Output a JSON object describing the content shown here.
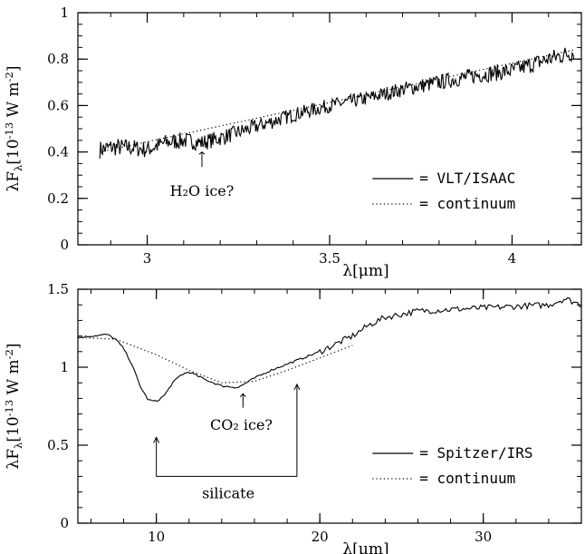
{
  "chart_data": [
    {
      "type": "line",
      "xlabel": "λ[μm]",
      "ylabel": "λF_λ[10^-13 W m^-2]",
      "xlim": [
        2.81,
        4.19
      ],
      "ylim": [
        0,
        1
      ],
      "x_ticks": [
        "3",
        "3.5",
        "4"
      ],
      "y_ticks": [
        "0",
        "0.2",
        "0.4",
        "0.6",
        "0.8",
        "1"
      ],
      "legend_placement": "bottom-right",
      "series": [
        {
          "name": "= VLT/ISAAC",
          "style": "solid",
          "noise": 0.03,
          "x": [
            2.87,
            2.9,
            2.95,
            3.0,
            3.05,
            3.1,
            3.15,
            3.2,
            3.3,
            3.4,
            3.5,
            3.6,
            3.7,
            3.8,
            3.9,
            4.0,
            4.1,
            4.17
          ],
          "y": [
            0.41,
            0.42,
            0.42,
            0.41,
            0.44,
            0.45,
            0.44,
            0.46,
            0.51,
            0.56,
            0.6,
            0.63,
            0.67,
            0.7,
            0.73,
            0.75,
            0.8,
            0.83
          ]
        },
        {
          "name": "= continuum",
          "style": "dotted",
          "x": [
            2.87,
            4.17
          ],
          "y": [
            0.4,
            0.84
          ]
        }
      ],
      "annotations": [
        {
          "text": "H₂O ice?",
          "x": 3.15,
          "y": 0.38
        }
      ]
    },
    {
      "type": "line",
      "xlabel": "λ[μm]",
      "ylabel": "λF_λ[10^-13 W m^-2]",
      "xlim": [
        5.2,
        36
      ],
      "ylim": [
        0,
        1.5
      ],
      "x_ticks": [
        "10",
        "20",
        "30"
      ],
      "y_ticks": [
        "0",
        "0.5",
        "1",
        "1.5"
      ],
      "legend_placement": "bottom-right",
      "series": [
        {
          "name": "= Spitzer/IRS",
          "style": "solid",
          "x": [
            5.2,
            6,
            7,
            7.5,
            8,
            8.5,
            9,
            9.5,
            10,
            10.5,
            11,
            11.5,
            12,
            13,
            14,
            15,
            16,
            17,
            18,
            19,
            20,
            21,
            22,
            23,
            24,
            25,
            26,
            28,
            30,
            32,
            34,
            35,
            36
          ],
          "y": [
            1.19,
            1.2,
            1.21,
            1.18,
            1.12,
            1.02,
            0.88,
            0.79,
            0.78,
            0.82,
            0.9,
            0.95,
            0.97,
            0.92,
            0.88,
            0.87,
            0.93,
            0.98,
            1.02,
            1.06,
            1.1,
            1.15,
            1.2,
            1.27,
            1.32,
            1.34,
            1.36,
            1.37,
            1.38,
            1.39,
            1.4,
            1.44,
            1.4
          ]
        },
        {
          "name": "= continuum",
          "style": "dotted",
          "x": [
            5.2,
            7.5,
            10,
            12,
            14,
            16,
            18,
            20,
            22
          ],
          "y": [
            1.19,
            1.18,
            1.08,
            0.98,
            0.9,
            0.91,
            0.98,
            1.06,
            1.14
          ]
        }
      ],
      "annotations": [
        {
          "text": "CO₂ ice?",
          "x": 15.2,
          "y": 0.6
        },
        {
          "text": "silicate",
          "x": 14.4,
          "y": 0.16
        }
      ]
    }
  ]
}
